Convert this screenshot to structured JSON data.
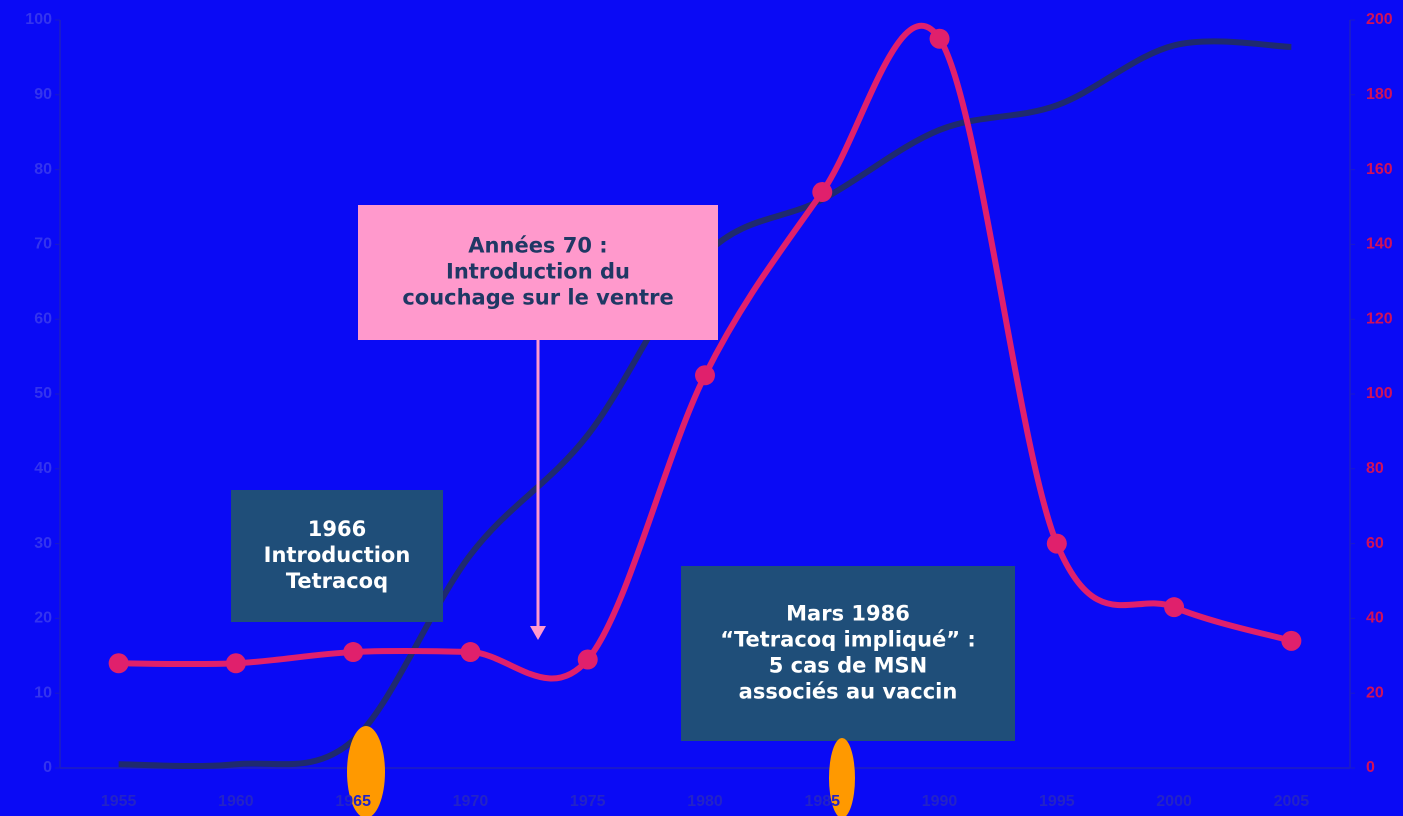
{
  "chart_data": {
    "type": "line",
    "categories": [
      1955,
      1960,
      1965,
      1970,
      1975,
      1980,
      1985,
      1990,
      1995,
      2000,
      2005
    ],
    "ylim": [
      0,
      100
    ],
    "yticks": [
      0,
      10,
      20,
      30,
      40,
      50,
      60,
      70,
      80,
      90,
      100
    ],
    "y2lim": [
      0,
      200
    ],
    "y2ticks": [
      0,
      20,
      40,
      60,
      80,
      100,
      120,
      140,
      160,
      180,
      200
    ],
    "series": [
      {
        "color": "#1f2a6e",
        "markers": false,
        "smooth": true,
        "values": [
          0.5,
          0.5,
          3.7,
          28.5,
          44.5,
          68.6,
          76,
          85.3,
          88.6,
          96.6,
          96.4
        ]
      },
      {
        "color": "#e0206c",
        "markers": true,
        "smooth": true,
        "axis": "y2",
        "values": [
          28,
          28,
          31,
          31,
          29,
          105,
          154,
          195,
          60,
          43,
          34
        ]
      }
    ],
    "annotations": [
      {
        "lines": [
          "Années 70 :",
          "Introduction du",
          "couchage sur le ventre"
        ],
        "fill": "#ff99cc",
        "text_color": "#1f3864"
      },
      {
        "lines": [
          "1966",
          "Introduction",
          "Tetracoq"
        ],
        "fill": "#1f4e79",
        "text_color": "#ffffff"
      },
      {
        "lines": [
          "Mars 1986",
          "“Tetracoq impliqué” :",
          "5 cas de MSN",
          "associés au vaccin"
        ],
        "fill": "#1f4e79",
        "text_color": "#ffffff"
      }
    ]
  }
}
